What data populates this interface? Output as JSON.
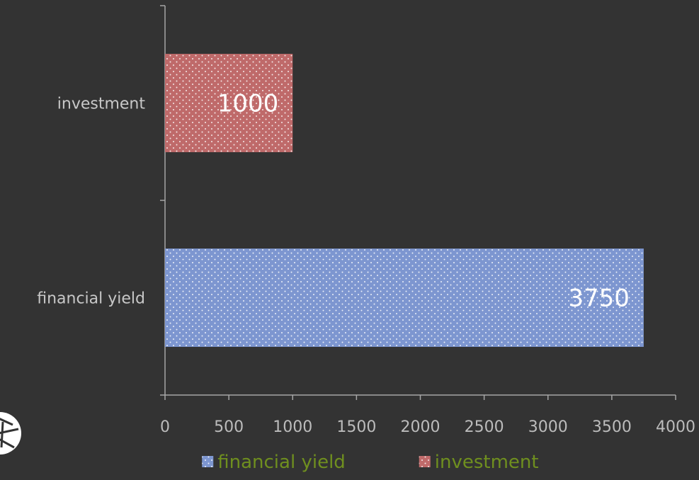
{
  "chart_data": {
    "type": "bar",
    "orientation": "horizontal",
    "categories": [
      "financial yield",
      "investment"
    ],
    "series": [
      {
        "name": "financial yield",
        "color": "#7d96d0",
        "values": [
          3750,
          null
        ]
      },
      {
        "name": "investment",
        "color": "#bf6a6a",
        "values": [
          null,
          1000
        ]
      }
    ],
    "xlim": [
      0,
      4000
    ],
    "x_ticks": [
      0,
      500,
      1000,
      1500,
      2000,
      2500,
      3000,
      3500,
      4000
    ],
    "data_labels": [
      "3750",
      "1000"
    ],
    "legend_position": "bottom",
    "grid": false
  }
}
